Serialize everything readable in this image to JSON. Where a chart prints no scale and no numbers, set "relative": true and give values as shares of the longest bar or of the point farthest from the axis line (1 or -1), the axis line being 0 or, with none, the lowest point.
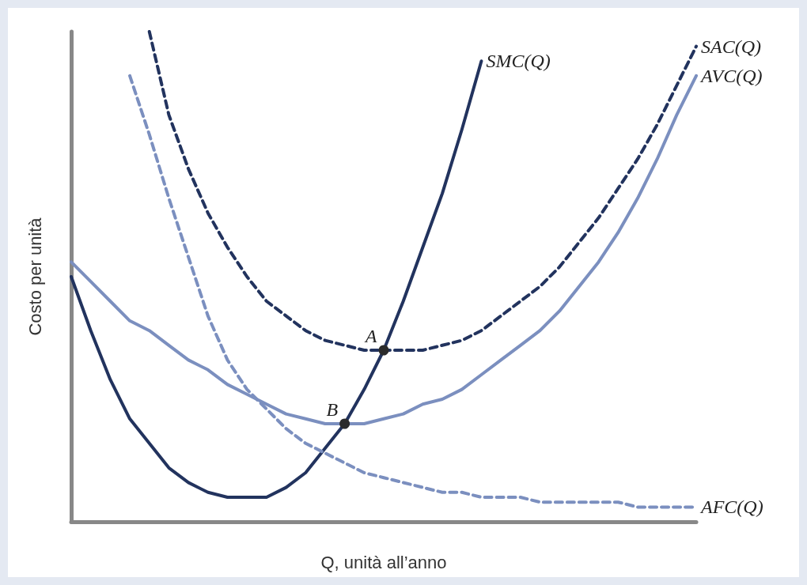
{
  "chart_data": {
    "type": "line",
    "relative": true,
    "xlabel": "Q, unità all’anno",
    "ylabel": "Costo per unità",
    "grid": false,
    "legend": false,
    "marker": "none",
    "categories": [
      null,
      null,
      null,
      null,
      null,
      null,
      null,
      null,
      null,
      null,
      null,
      null,
      null,
      null,
      null,
      null,
      null,
      null,
      null,
      null,
      null,
      null,
      null,
      null,
      null,
      null,
      null,
      null,
      null,
      null,
      null,
      null,
      null
    ],
    "series": [
      {
        "name": "SMC(Q)",
        "color": "#22335e",
        "line_style": "solid",
        "values": [
          0.5,
          0.39,
          0.29,
          0.21,
          0.16,
          0.11,
          0.08,
          0.06,
          0.05,
          0.05,
          0.05,
          0.07,
          0.1,
          0.15,
          0.2,
          0.27,
          0.35,
          0.45,
          0.56,
          0.67,
          0.8,
          0.94,
          null,
          null,
          null,
          null,
          null,
          null,
          null,
          null,
          null,
          null,
          null
        ]
      },
      {
        "name": "SAC(Q)",
        "color": "#22335e",
        "line_style": "dashed",
        "values": [
          null,
          null,
          null,
          null,
          1.0,
          0.83,
          0.72,
          0.63,
          0.56,
          0.5,
          0.45,
          0.42,
          0.39,
          0.37,
          0.36,
          0.35,
          0.35,
          0.35,
          0.35,
          0.36,
          0.37,
          0.39,
          0.42,
          0.45,
          0.48,
          0.52,
          0.57,
          0.62,
          0.68,
          0.74,
          0.81,
          0.89,
          0.97
        ]
      },
      {
        "name": "AVC(Q)",
        "color": "#7b8fbf",
        "line_style": "solid",
        "values": [
          0.53,
          0.49,
          0.45,
          0.41,
          0.39,
          0.36,
          0.33,
          0.31,
          0.28,
          0.26,
          0.24,
          0.22,
          0.21,
          0.2,
          0.2,
          0.2,
          0.21,
          0.22,
          0.24,
          0.25,
          0.27,
          0.3,
          0.33,
          0.36,
          0.39,
          0.43,
          0.48,
          0.53,
          0.59,
          0.66,
          0.74,
          0.83,
          0.91
        ]
      },
      {
        "name": "AFC(Q)",
        "color": "#7b8fbf",
        "line_style": "dashed",
        "values": [
          null,
          null,
          null,
          0.91,
          0.79,
          0.66,
          0.54,
          0.42,
          0.33,
          0.27,
          0.23,
          0.19,
          0.16,
          0.14,
          0.12,
          0.1,
          0.09,
          0.08,
          0.07,
          0.06,
          0.06,
          0.05,
          0.05,
          0.05,
          0.04,
          0.04,
          0.04,
          0.04,
          0.04,
          0.03,
          0.03,
          0.03,
          0.03
        ]
      }
    ],
    "annotations": [
      {
        "text": "A",
        "y": 0.35
      },
      {
        "text": "B",
        "y": 0.2
      }
    ]
  }
}
